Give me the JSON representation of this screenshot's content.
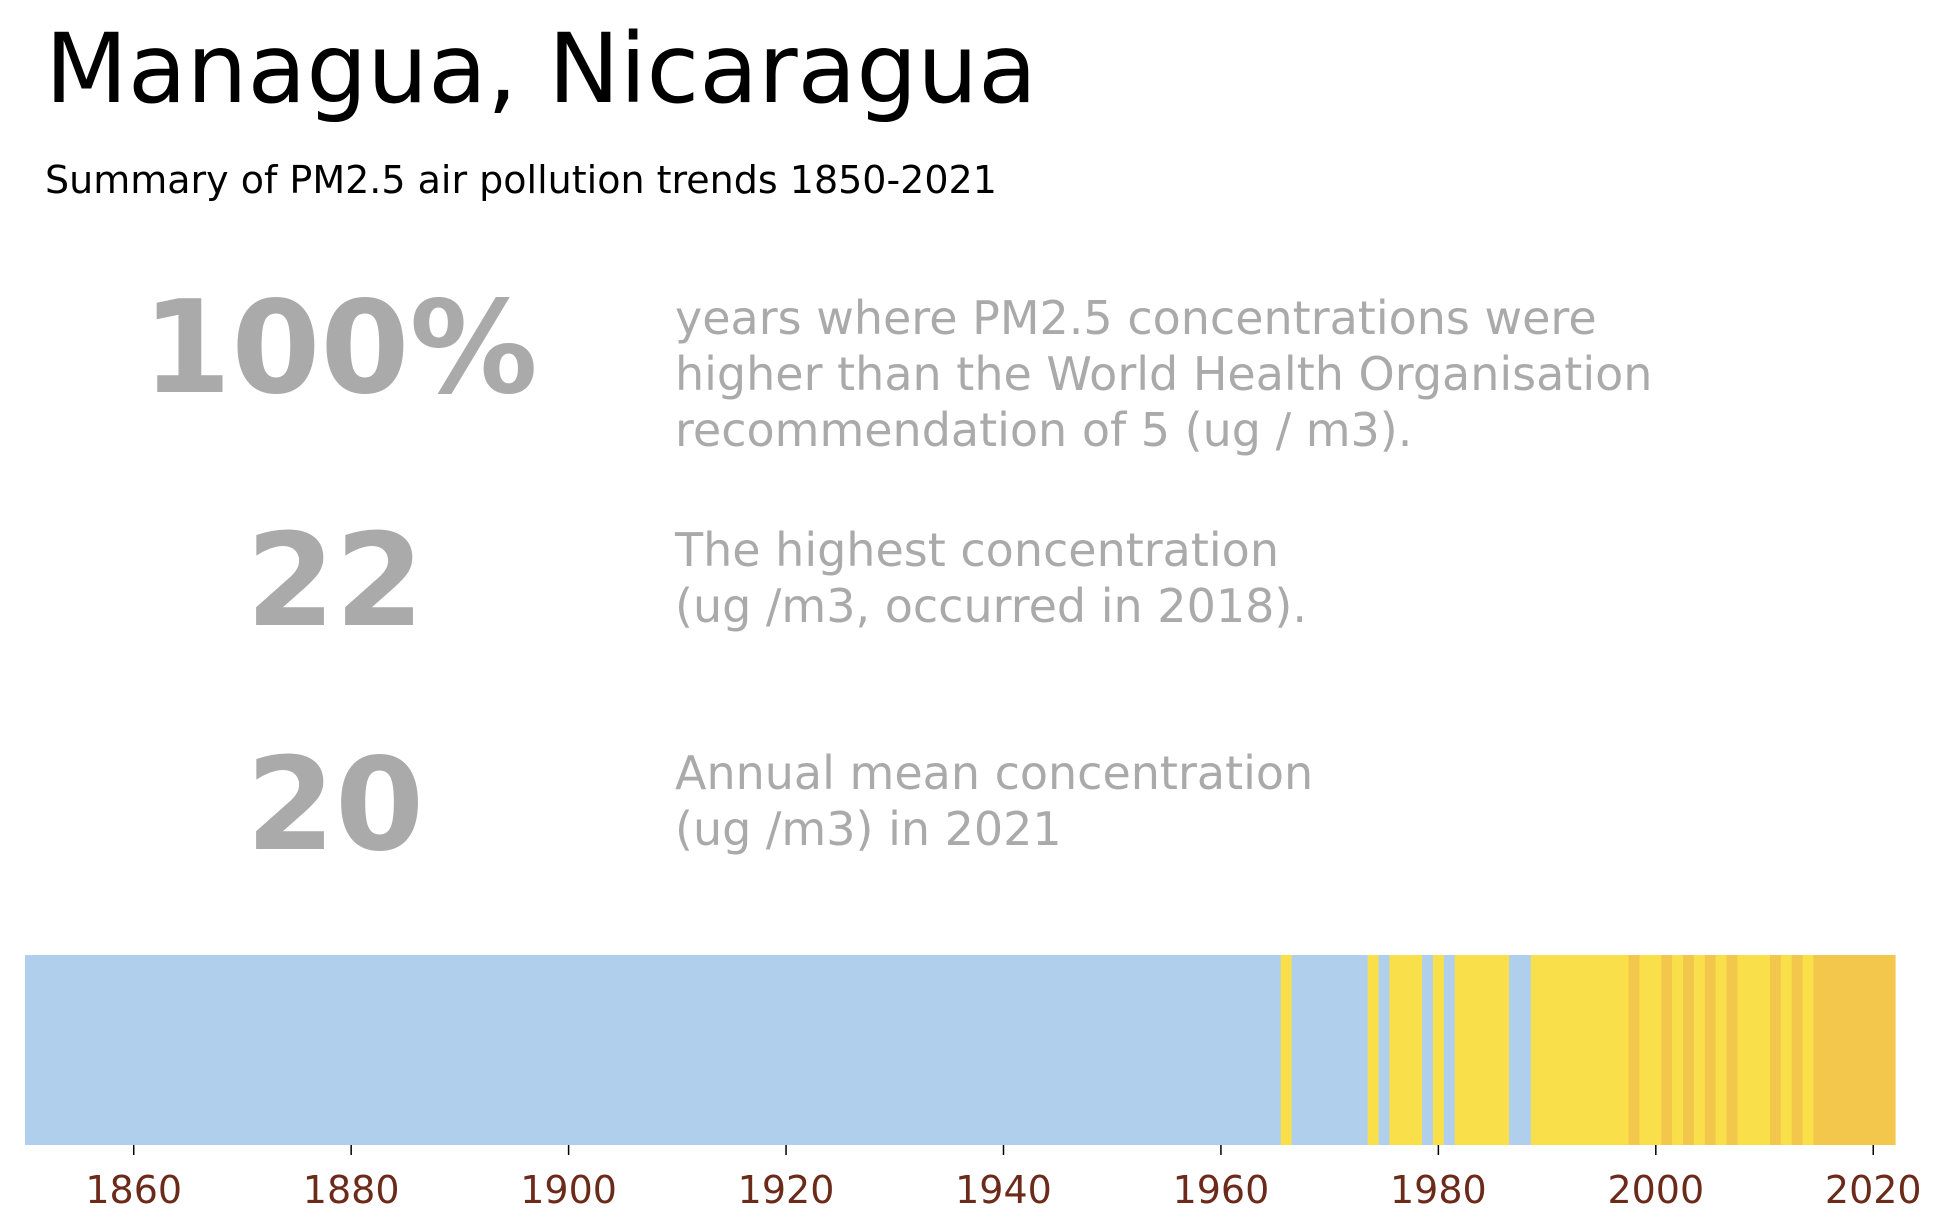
{
  "title": "Managua, Nicaragua",
  "subtitle": "Summary of PM2.5 air pollution trends 1850-2021",
  "stats": [
    {
      "value": "100%",
      "lines": [
        "years where PM2.5 concentrations were",
        "higher than the World Health Organisation",
        "recommendation of 5 (ug / m3)."
      ]
    },
    {
      "value": "22",
      "lines": [
        "The highest concentration",
        "(ug /m3, occurred in 2018)."
      ]
    },
    {
      "value": "20",
      "lines": [
        "Annual mean concentration",
        "(ug /m3) in 2021"
      ]
    }
  ],
  "chart_data": {
    "type": "heatmap",
    "xlim": [
      1850,
      2022
    ],
    "x_ticks": [
      1860,
      1880,
      1900,
      1920,
      1940,
      1960,
      1980,
      2000,
      2020
    ],
    "colors": {
      "low": "#b0cfed",
      "mid": "#f9e04a",
      "high": "#f2c74c",
      "tick_label": "#6b2a1a"
    },
    "segments": [
      {
        "start": 1850,
        "end": 1965.5,
        "level": "low"
      },
      {
        "start": 1965.5,
        "end": 1966.5,
        "level": "mid"
      },
      {
        "start": 1966.5,
        "end": 1973.5,
        "level": "low"
      },
      {
        "start": 1973.5,
        "end": 1974.5,
        "level": "mid"
      },
      {
        "start": 1974.5,
        "end": 1975.5,
        "level": "low"
      },
      {
        "start": 1975.5,
        "end": 1978.5,
        "level": "mid"
      },
      {
        "start": 1978.5,
        "end": 1979.5,
        "level": "low"
      },
      {
        "start": 1979.5,
        "end": 1980.5,
        "level": "mid"
      },
      {
        "start": 1980.5,
        "end": 1981.5,
        "level": "low"
      },
      {
        "start": 1981.5,
        "end": 1986.5,
        "level": "mid"
      },
      {
        "start": 1986.5,
        "end": 1988.5,
        "level": "low"
      },
      {
        "start": 1988.5,
        "end": 1997.5,
        "level": "mid"
      },
      {
        "start": 1997.5,
        "end": 1998.5,
        "level": "high"
      },
      {
        "start": 1998.5,
        "end": 2000.5,
        "level": "mid"
      },
      {
        "start": 2000.5,
        "end": 2001.5,
        "level": "high"
      },
      {
        "start": 2001.5,
        "end": 2002.5,
        "level": "mid"
      },
      {
        "start": 2002.5,
        "end": 2003.5,
        "level": "high"
      },
      {
        "start": 2003.5,
        "end": 2004.5,
        "level": "mid"
      },
      {
        "start": 2004.5,
        "end": 2005.5,
        "level": "high"
      },
      {
        "start": 2005.5,
        "end": 2006.5,
        "level": "mid"
      },
      {
        "start": 2006.5,
        "end": 2007.5,
        "level": "high"
      },
      {
        "start": 2007.5,
        "end": 2010.5,
        "level": "mid"
      },
      {
        "start": 2010.5,
        "end": 2011.5,
        "level": "high"
      },
      {
        "start": 2011.5,
        "end": 2012.5,
        "level": "mid"
      },
      {
        "start": 2012.5,
        "end": 2013.5,
        "level": "high"
      },
      {
        "start": 2013.5,
        "end": 2014.5,
        "level": "mid"
      },
      {
        "start": 2014.5,
        "end": 2022,
        "level": "high"
      }
    ]
  }
}
